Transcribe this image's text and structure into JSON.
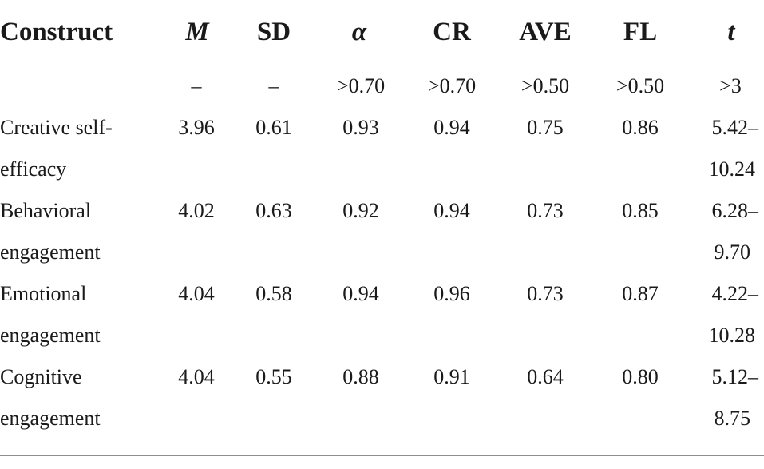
{
  "table": {
    "headers": {
      "construct": "Construct",
      "m": "M",
      "sd": "SD",
      "alpha": "α",
      "cr": "CR",
      "ave": "AVE",
      "fl": "FL",
      "t": "t"
    },
    "thresholds": {
      "m": "–",
      "sd": "–",
      "alpha": ">0.70",
      "cr": ">0.70",
      "ave": ">0.50",
      "fl": ">0.50",
      "t": ">3"
    },
    "rows": [
      {
        "construct_line1": "Creative self-",
        "construct_line2": "efficacy",
        "m": "3.96",
        "sd": "0.61",
        "alpha": "0.93",
        "cr": "0.94",
        "ave": "0.75",
        "fl": "0.86",
        "t_line1": "5.42–",
        "t_line2": "10.24"
      },
      {
        "construct_line1": "Behavioral",
        "construct_line2": "engagement",
        "m": "4.02",
        "sd": "0.63",
        "alpha": "0.92",
        "cr": "0.94",
        "ave": "0.73",
        "fl": "0.85",
        "t_line1": "6.28–",
        "t_line2": "9.70"
      },
      {
        "construct_line1": "Emotional",
        "construct_line2": "engagement",
        "m": "4.04",
        "sd": "0.58",
        "alpha": "0.94",
        "cr": "0.96",
        "ave": "0.73",
        "fl": "0.87",
        "t_line1": "4.22–",
        "t_line2": "10.28"
      },
      {
        "construct_line1": "Cognitive",
        "construct_line2": "engagement",
        "m": "4.04",
        "sd": "0.55",
        "alpha": "0.88",
        "cr": "0.91",
        "ave": "0.64",
        "fl": "0.80",
        "t_line1": "5.12–",
        "t_line2": "8.75"
      }
    ]
  }
}
